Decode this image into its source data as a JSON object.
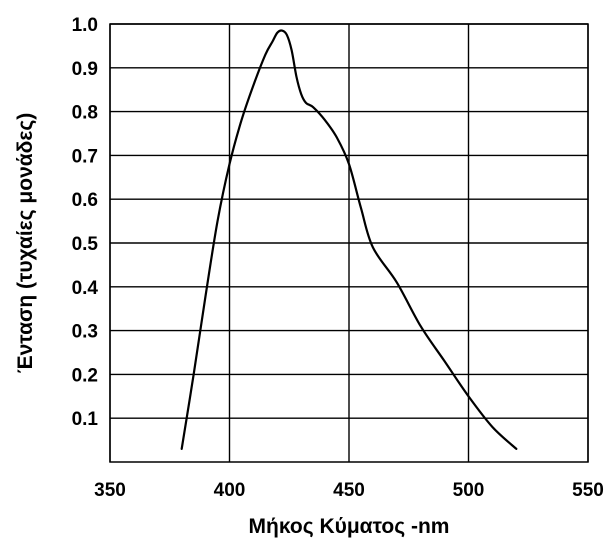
{
  "chart_data": {
    "type": "line",
    "title": "",
    "xlabel": "Μήκος Κύματος -nm",
    "ylabel": "Ένταση (τυχαίες μονάδες)",
    "xlim": [
      350,
      550
    ],
    "ylim": [
      0,
      1.0
    ],
    "x_ticks": [
      "350",
      "400",
      "450",
      "500",
      "550"
    ],
    "y_ticks": [
      "0.1",
      "0.2",
      "0.3",
      "0.4",
      "0.5",
      "0.6",
      "0.7",
      "0.8",
      "0.9",
      "1.0"
    ],
    "grid": true,
    "line_color": "#000000",
    "series": [
      {
        "x": [
          380,
          385,
          390,
          395,
          400,
          405,
          410,
          415,
          418,
          420,
          422,
          424,
          426,
          428,
          430,
          432,
          435,
          440,
          445,
          450,
          455,
          460,
          470,
          480,
          490,
          500,
          510,
          520
        ],
        "y": [
          0.03,
          0.2,
          0.38,
          0.55,
          0.68,
          0.78,
          0.86,
          0.93,
          0.96,
          0.98,
          0.985,
          0.975,
          0.94,
          0.88,
          0.84,
          0.82,
          0.81,
          0.78,
          0.74,
          0.68,
          0.58,
          0.49,
          0.41,
          0.31,
          0.23,
          0.15,
          0.08,
          0.03
        ]
      }
    ]
  }
}
